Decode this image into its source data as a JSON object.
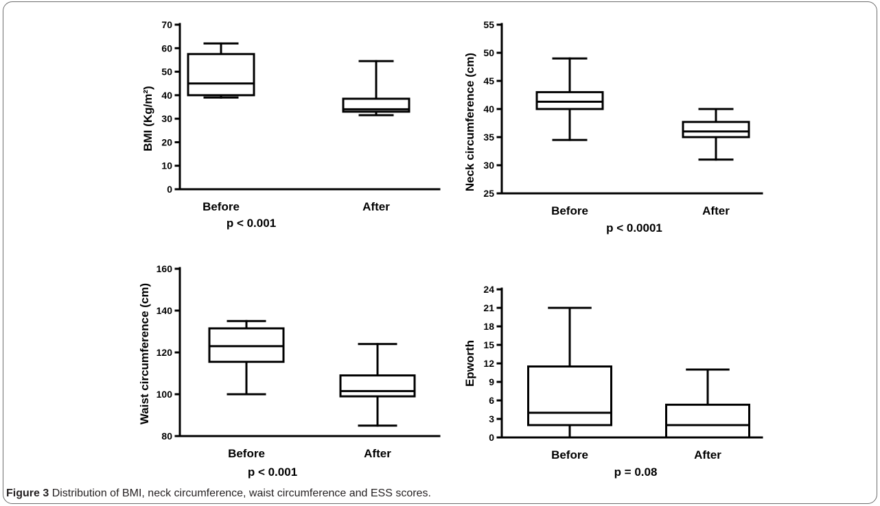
{
  "figure": {
    "caption_label": "Figure 3",
    "caption_text": "Distribution of BMI, neck circumference, waist circumference and ESS scores."
  },
  "chart_data": [
    {
      "type": "boxplot",
      "ylabel": "BMI (Kg/m²)",
      "ylim": [
        0,
        70
      ],
      "yticks": [
        0,
        10,
        20,
        30,
        40,
        50,
        60,
        70
      ],
      "categories": [
        "Before",
        "After"
      ],
      "boxes": [
        {
          "min": 39,
          "q1": 40,
          "median": 45,
          "q3": 57.5,
          "max": 62
        },
        {
          "min": 31.5,
          "q1": 33,
          "median": 34,
          "q3": 38.5,
          "max": 54.5
        }
      ],
      "annotation": "p < 0.001"
    },
    {
      "type": "boxplot",
      "ylabel": "Neck circumference (cm)",
      "ylim": [
        25,
        55
      ],
      "yticks": [
        25,
        30,
        35,
        40,
        45,
        50,
        55
      ],
      "categories": [
        "Before",
        "After"
      ],
      "boxes": [
        {
          "min": 34.5,
          "q1": 40,
          "median": 41.3,
          "q3": 43,
          "max": 49
        },
        {
          "min": 31,
          "q1": 35,
          "median": 36,
          "q3": 37.7,
          "max": 40
        }
      ],
      "annotation": "p < 0.0001"
    },
    {
      "type": "boxplot",
      "ylabel": "Waist circumference (cm)",
      "ylim": [
        80,
        160
      ],
      "yticks": [
        80,
        100,
        120,
        140,
        160
      ],
      "categories": [
        "Before",
        "After"
      ],
      "boxes": [
        {
          "min": 100,
          "q1": 115.5,
          "median": 123,
          "q3": 131.5,
          "max": 135
        },
        {
          "min": 85,
          "q1": 99,
          "median": 101.5,
          "q3": 109,
          "max": 124
        }
      ],
      "annotation": "p < 0.001"
    },
    {
      "type": "boxplot",
      "ylabel": "Epworth",
      "ylim": [
        0,
        24
      ],
      "yticks": [
        0,
        3,
        6,
        9,
        12,
        15,
        18,
        21,
        24
      ],
      "categories": [
        "Before",
        "After"
      ],
      "boxes": [
        {
          "min": 0,
          "q1": 2,
          "median": 4,
          "q3": 11.5,
          "max": 21
        },
        {
          "min": 0,
          "q1": 0,
          "median": 2,
          "q3": 5.3,
          "max": 11
        }
      ],
      "annotation": "p = 0.08"
    }
  ]
}
